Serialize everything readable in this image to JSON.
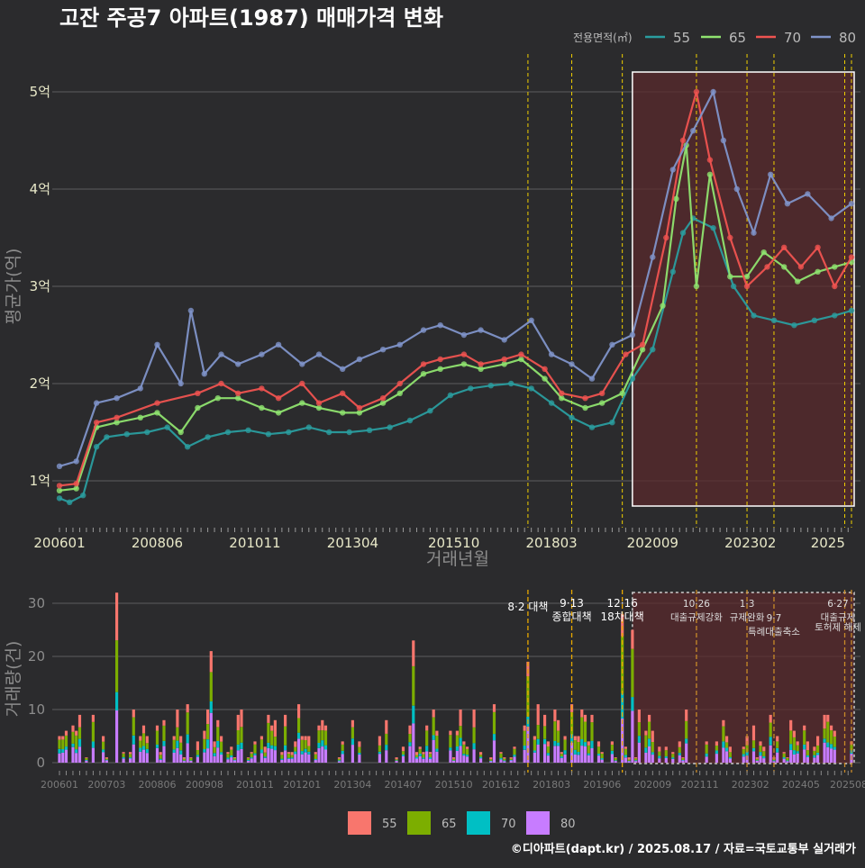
{
  "title": "고잔 주공7 아파트(1987) 매매가격 변화",
  "footer": "©디아파트(dapt.kr) / 2025.08.17 / 자료=국토교통부 실거래가",
  "colors": {
    "background": "#2b2b2d",
    "s55": "#2a9d9f",
    "s65": "#8fe36f",
    "s70": "#ef5350",
    "s80": "#7f93c9",
    "b55": "#f8766d",
    "b65": "#7cae00",
    "b70": "#00bfc4",
    "b80": "#c77cff",
    "policy": "#f0d000",
    "highlight_fill": "#5a2a2c"
  },
  "chart_data": [
    {
      "type": "line",
      "title": "고잔 주공7 아파트(1987) 매매가격 변화",
      "xlabel": "거래년월",
      "ylabel": "평균가(억)",
      "legend_title": "전용면적(㎡)",
      "legend_position": "top-right",
      "x_ticks": [
        "200601",
        "200806",
        "201011",
        "201304",
        "201510",
        "201803",
        "202009",
        "202302",
        "2025"
      ],
      "y_ticks": [
        "1억",
        "2억",
        "3억",
        "4억",
        "5억"
      ],
      "ylim": [
        0.55,
        5.35
      ],
      "policy_lines": [
        "2017-08",
        "2018-09",
        "2019-12",
        "2021-10",
        "2023-01",
        "2023-09",
        "2025-06",
        "2025-08"
      ],
      "highlight_range": [
        "2020-03",
        "2025-08"
      ],
      "series": [
        {
          "name": "55",
          "points": [
            [
              "2006-01",
              0.82
            ],
            [
              "2006-04",
              0.78
            ],
            [
              "2006-08",
              0.85
            ],
            [
              "2006-12",
              1.35
            ],
            [
              "2007-03",
              1.45
            ],
            [
              "2007-09",
              1.48
            ],
            [
              "2008-03",
              1.5
            ],
            [
              "2008-09",
              1.55
            ],
            [
              "2009-03",
              1.35
            ],
            [
              "2009-09",
              1.45
            ],
            [
              "2010-03",
              1.5
            ],
            [
              "2010-09",
              1.52
            ],
            [
              "2011-03",
              1.48
            ],
            [
              "2011-09",
              1.5
            ],
            [
              "2012-03",
              1.55
            ],
            [
              "2012-09",
              1.5
            ],
            [
              "2013-03",
              1.5
            ],
            [
              "2013-09",
              1.52
            ],
            [
              "2014-03",
              1.55
            ],
            [
              "2014-09",
              1.62
            ],
            [
              "2015-03",
              1.72
            ],
            [
              "2015-09",
              1.88
            ],
            [
              "2016-03",
              1.95
            ],
            [
              "2016-09",
              1.98
            ],
            [
              "2017-03",
              2.0
            ],
            [
              "2017-09",
              1.95
            ],
            [
              "2018-03",
              1.8
            ],
            [
              "2018-09",
              1.65
            ],
            [
              "2019-03",
              1.55
            ],
            [
              "2019-09",
              1.6
            ],
            [
              "2020-03",
              2.05
            ],
            [
              "2020-09",
              2.35
            ],
            [
              "2021-03",
              3.15
            ],
            [
              "2021-06",
              3.55
            ],
            [
              "2021-09",
              3.7
            ],
            [
              "2022-03",
              3.6
            ],
            [
              "2022-09",
              3.0
            ],
            [
              "2023-03",
              2.7
            ],
            [
              "2023-09",
              2.65
            ],
            [
              "2024-03",
              2.6
            ],
            [
              "2024-09",
              2.65
            ],
            [
              "2025-03",
              2.7
            ],
            [
              "2025-08",
              2.75
            ]
          ]
        },
        {
          "name": "65",
          "points": [
            [
              "2006-01",
              0.9
            ],
            [
              "2006-06",
              0.92
            ],
            [
              "2006-12",
              1.55
            ],
            [
              "2007-06",
              1.6
            ],
            [
              "2008-01",
              1.65
            ],
            [
              "2008-06",
              1.7
            ],
            [
              "2009-01",
              1.5
            ],
            [
              "2009-06",
              1.75
            ],
            [
              "2009-12",
              1.85
            ],
            [
              "2010-06",
              1.85
            ],
            [
              "2011-01",
              1.75
            ],
            [
              "2011-06",
              1.7
            ],
            [
              "2012-01",
              1.8
            ],
            [
              "2012-06",
              1.75
            ],
            [
              "2013-01",
              1.7
            ],
            [
              "2013-06",
              1.7
            ],
            [
              "2014-01",
              1.8
            ],
            [
              "2014-06",
              1.9
            ],
            [
              "2015-01",
              2.1
            ],
            [
              "2015-06",
              2.15
            ],
            [
              "2016-01",
              2.2
            ],
            [
              "2016-06",
              2.15
            ],
            [
              "2017-01",
              2.2
            ],
            [
              "2017-06",
              2.25
            ],
            [
              "2018-01",
              2.05
            ],
            [
              "2018-06",
              1.85
            ],
            [
              "2019-01",
              1.75
            ],
            [
              "2019-06",
              1.8
            ],
            [
              "2019-12",
              1.9
            ],
            [
              "2020-06",
              2.35
            ],
            [
              "2020-12",
              2.8
            ],
            [
              "2021-04",
              3.9
            ],
            [
              "2021-07",
              4.45
            ],
            [
              "2021-10",
              3.0
            ],
            [
              "2022-02",
              4.15
            ],
            [
              "2022-08",
              3.1
            ],
            [
              "2023-01",
              3.1
            ],
            [
              "2023-06",
              3.35
            ],
            [
              "2023-12",
              3.2
            ],
            [
              "2024-04",
              3.05
            ],
            [
              "2024-10",
              3.15
            ],
            [
              "2025-03",
              3.2
            ],
            [
              "2025-08",
              3.25
            ]
          ]
        },
        {
          "name": "70",
          "points": [
            [
              "2006-01",
              0.95
            ],
            [
              "2006-06",
              0.97
            ],
            [
              "2006-12",
              1.6
            ],
            [
              "2007-06",
              1.65
            ],
            [
              "2008-06",
              1.8
            ],
            [
              "2009-06",
              1.9
            ],
            [
              "2010-01",
              2.0
            ],
            [
              "2010-06",
              1.9
            ],
            [
              "2011-01",
              1.95
            ],
            [
              "2011-06",
              1.85
            ],
            [
              "2012-01",
              2.0
            ],
            [
              "2012-06",
              1.8
            ],
            [
              "2013-01",
              1.9
            ],
            [
              "2013-06",
              1.75
            ],
            [
              "2014-01",
              1.85
            ],
            [
              "2014-06",
              2.0
            ],
            [
              "2015-01",
              2.2
            ],
            [
              "2015-06",
              2.25
            ],
            [
              "2016-01",
              2.3
            ],
            [
              "2016-06",
              2.2
            ],
            [
              "2017-01",
              2.25
            ],
            [
              "2017-06",
              2.3
            ],
            [
              "2018-01",
              2.15
            ],
            [
              "2018-06",
              1.9
            ],
            [
              "2019-01",
              1.85
            ],
            [
              "2019-06",
              1.9
            ],
            [
              "2020-01",
              2.3
            ],
            [
              "2020-06",
              2.4
            ],
            [
              "2021-01",
              3.5
            ],
            [
              "2021-06",
              4.5
            ],
            [
              "2021-10",
              5.0
            ],
            [
              "2022-02",
              4.3
            ],
            [
              "2022-08",
              3.5
            ],
            [
              "2023-01",
              3.0
            ],
            [
              "2023-07",
              3.2
            ],
            [
              "2023-12",
              3.4
            ],
            [
              "2024-05",
              3.2
            ],
            [
              "2024-10",
              3.4
            ],
            [
              "2025-03",
              3.0
            ],
            [
              "2025-08",
              3.3
            ]
          ]
        },
        {
          "name": "80",
          "points": [
            [
              "2006-01",
              1.15
            ],
            [
              "2006-06",
              1.2
            ],
            [
              "2006-12",
              1.8
            ],
            [
              "2007-06",
              1.85
            ],
            [
              "2008-01",
              1.95
            ],
            [
              "2008-06",
              2.4
            ],
            [
              "2009-01",
              2.0
            ],
            [
              "2009-04",
              2.75
            ],
            [
              "2009-08",
              2.1
            ],
            [
              "2010-01",
              2.3
            ],
            [
              "2010-06",
              2.2
            ],
            [
              "2011-01",
              2.3
            ],
            [
              "2011-06",
              2.4
            ],
            [
              "2012-01",
              2.2
            ],
            [
              "2012-06",
              2.3
            ],
            [
              "2013-01",
              2.15
            ],
            [
              "2013-06",
              2.25
            ],
            [
              "2014-01",
              2.35
            ],
            [
              "2014-06",
              2.4
            ],
            [
              "2015-01",
              2.55
            ],
            [
              "2015-06",
              2.6
            ],
            [
              "2016-01",
              2.5
            ],
            [
              "2016-06",
              2.55
            ],
            [
              "2017-01",
              2.45
            ],
            [
              "2017-09",
              2.65
            ],
            [
              "2018-03",
              2.3
            ],
            [
              "2018-09",
              2.2
            ],
            [
              "2019-03",
              2.05
            ],
            [
              "2019-09",
              2.4
            ],
            [
              "2020-03",
              2.5
            ],
            [
              "2020-09",
              3.3
            ],
            [
              "2021-03",
              4.2
            ],
            [
              "2021-09",
              4.6
            ],
            [
              "2022-03",
              5.0
            ],
            [
              "2022-06",
              4.5
            ],
            [
              "2022-10",
              4.0
            ],
            [
              "2023-03",
              3.55
            ],
            [
              "2023-08",
              4.15
            ],
            [
              "2024-01",
              3.85
            ],
            [
              "2024-07",
              3.95
            ],
            [
              "2025-02",
              3.7
            ],
            [
              "2025-08",
              3.85
            ]
          ]
        }
      ]
    },
    {
      "type": "bar",
      "ylabel": "거래량(건)",
      "x_ticks": [
        "200601",
        "200703",
        "200806",
        "200908",
        "201011",
        "201201",
        "201304",
        "201407",
        "201510",
        "201612",
        "201803",
        "201906",
        "202009",
        "202111",
        "202302",
        "202405",
        "202508"
      ],
      "y_ticks": [
        "0",
        "10",
        "20",
        "30"
      ],
      "ylim": [
        0,
        33
      ],
      "policy_labels": [
        {
          "date": "2017-08",
          "text": "8·2 대책"
        },
        {
          "date": "2018-09",
          "text": "9·13\n종합대책"
        },
        {
          "date": "2019-12",
          "text": "12·16\n18차대책"
        },
        {
          "date": "2021-10",
          "text": "10·26\n대출규제강화"
        },
        {
          "date": "2023-01",
          "text": "1·3\n규제완화"
        },
        {
          "date": "2023-09",
          "text": "9·7\n특례대출축소"
        },
        {
          "date": "2025-06",
          "text": "6·27\n대출규제"
        },
        {
          "date": "2025-08",
          "text": "토허제 해제"
        }
      ],
      "highlight_range": [
        "2020-03",
        "2025-08"
      ],
      "legend": [
        "55",
        "65",
        "70",
        "80"
      ],
      "legend_position": "bottom",
      "peaks": [
        {
          "date": "2007-06",
          "total": 32
        },
        {
          "date": "2009-10",
          "total": 21
        },
        {
          "date": "2014-10",
          "total": 23
        },
        {
          "date": "2017-08",
          "total": 19
        },
        {
          "date": "2019-12",
          "total": 28
        },
        {
          "date": "2020-03",
          "total": 25
        }
      ]
    }
  ]
}
